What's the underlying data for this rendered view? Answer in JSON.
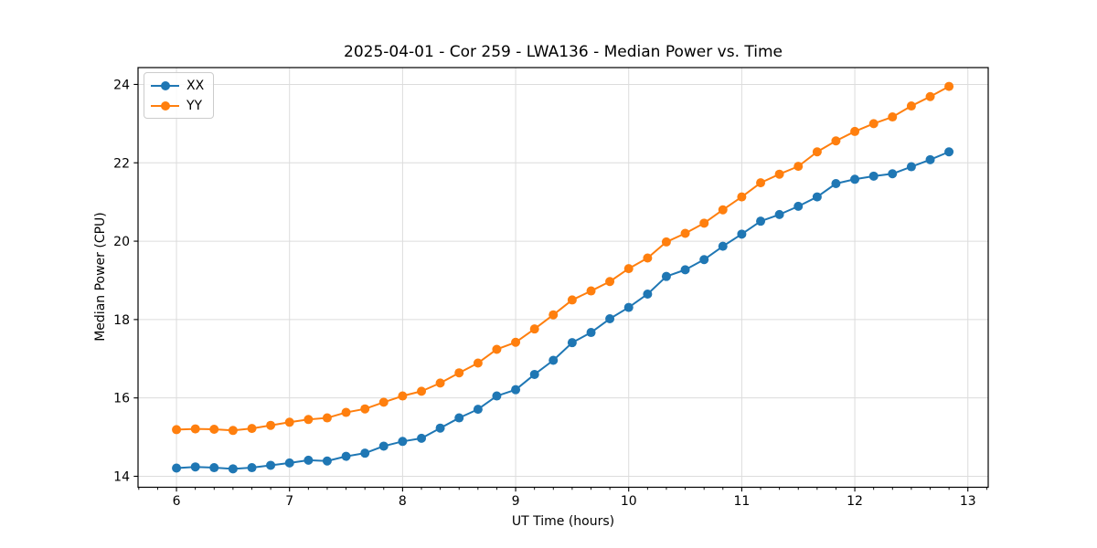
{
  "chart_data": {
    "type": "line",
    "title": "2025-04-01 - Cor 259 - LWA136 - Median Power vs. Time",
    "xlabel": "UT Time (hours)",
    "ylabel": "Median Power (CPU)",
    "x": [
      6.0,
      6.167,
      6.333,
      6.5,
      6.667,
      6.833,
      7.0,
      7.167,
      7.333,
      7.5,
      7.667,
      7.833,
      8.0,
      8.167,
      8.333,
      8.5,
      8.667,
      8.833,
      9.0,
      9.167,
      9.333,
      9.5,
      9.667,
      9.833,
      10.0,
      10.167,
      10.333,
      10.5,
      10.667,
      10.833,
      11.0,
      11.167,
      11.333,
      11.5,
      11.667,
      11.833,
      12.0,
      12.167,
      12.333,
      12.5,
      12.667,
      12.833
    ],
    "series": [
      {
        "name": "XX",
        "color": "#1f77b4",
        "marker": "circle",
        "values": [
          14.21,
          14.24,
          14.22,
          14.19,
          14.22,
          14.28,
          14.34,
          14.41,
          14.39,
          14.51,
          14.59,
          14.77,
          14.89,
          14.97,
          15.23,
          15.49,
          15.71,
          16.05,
          16.21,
          16.6,
          16.96,
          17.41,
          17.67,
          18.02,
          18.31,
          18.65,
          19.1,
          19.27,
          19.53,
          19.87,
          20.18,
          20.51,
          20.68,
          20.89,
          21.13,
          21.47,
          21.58,
          21.66,
          21.72,
          21.9,
          22.08,
          22.28
        ]
      },
      {
        "name": "YY",
        "color": "#ff7f0e",
        "marker": "circle",
        "values": [
          15.19,
          15.21,
          15.2,
          15.17,
          15.22,
          15.3,
          15.38,
          15.45,
          15.49,
          15.63,
          15.72,
          15.89,
          16.05,
          16.17,
          16.38,
          16.64,
          16.89,
          17.24,
          17.42,
          17.76,
          18.12,
          18.5,
          18.73,
          18.97,
          19.3,
          19.57,
          19.98,
          20.2,
          20.46,
          20.8,
          21.13,
          21.49,
          21.71,
          21.91,
          22.28,
          22.56,
          22.8,
          23.0,
          23.17,
          23.45,
          23.69,
          23.95
        ]
      }
    ],
    "xlim": [
      5.66,
      13.18
    ],
    "ylim": [
      13.72,
      24.43
    ],
    "xticks": [
      6,
      7,
      8,
      9,
      10,
      11,
      12,
      13
    ],
    "yticks": [
      14,
      16,
      18,
      20,
      22,
      24
    ],
    "x_minor_tick_step": 0.1666667,
    "grid": true,
    "grid_color": "#dcdcdc",
    "spine_color": "#000000",
    "background": "#ffffff",
    "legend_position": "upper left"
  }
}
